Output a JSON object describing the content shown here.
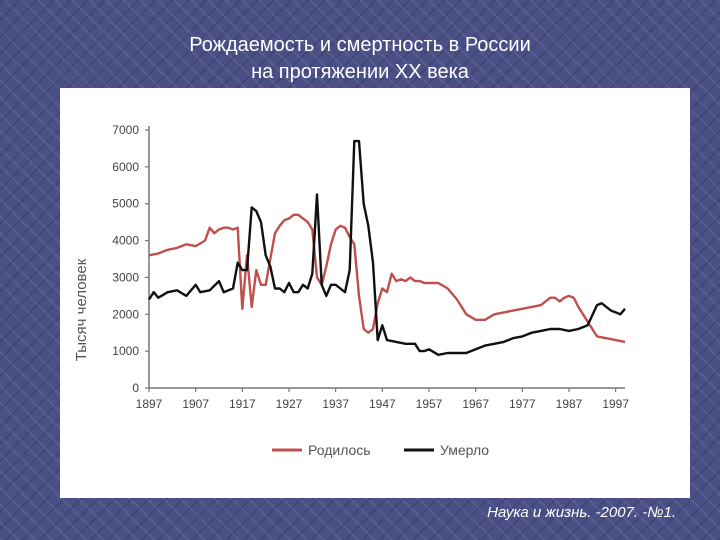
{
  "slide": {
    "title_line1": "Рождаемость и смертность в России",
    "title_line2": "на протяжении XX века",
    "source": "Наука и жизнь. -2007. -№1."
  },
  "colors": {
    "births": "#c0504d",
    "deaths": "#111111",
    "axis": "#777777"
  },
  "chart_data": {
    "type": "line",
    "title": "",
    "xlabel": "",
    "ylabel": "Тысяч человек",
    "xlim": [
      1897,
      1999
    ],
    "ylim": [
      0,
      7000
    ],
    "x_ticks": [
      1897,
      1907,
      1917,
      1927,
      1937,
      1947,
      1957,
      1967,
      1977,
      1987,
      1997
    ],
    "y_ticks": [
      0,
      1000,
      2000,
      3000,
      4000,
      5000,
      6000,
      7000
    ],
    "legend_position": "bottom",
    "series": [
      {
        "name": "Родилось",
        "color": "#c0504d",
        "points": [
          [
            1897,
            3600
          ],
          [
            1899,
            3650
          ],
          [
            1901,
            3750
          ],
          [
            1903,
            3800
          ],
          [
            1905,
            3900
          ],
          [
            1907,
            3850
          ],
          [
            1909,
            4000
          ],
          [
            1910,
            4350
          ],
          [
            1911,
            4200
          ],
          [
            1912,
            4300
          ],
          [
            1913,
            4350
          ],
          [
            1914,
            4350
          ],
          [
            1915,
            4300
          ],
          [
            1916,
            4350
          ],
          [
            1917,
            2150
          ],
          [
            1918,
            3600
          ],
          [
            1919,
            2200
          ],
          [
            1920,
            3200
          ],
          [
            1921,
            2800
          ],
          [
            1922,
            2800
          ],
          [
            1923,
            3500
          ],
          [
            1924,
            4200
          ],
          [
            1925,
            4400
          ],
          [
            1926,
            4550
          ],
          [
            1927,
            4600
          ],
          [
            1928,
            4700
          ],
          [
            1929,
            4700
          ],
          [
            1930,
            4600
          ],
          [
            1931,
            4500
          ],
          [
            1932,
            4300
          ],
          [
            1933,
            3000
          ],
          [
            1934,
            2800
          ],
          [
            1935,
            3300
          ],
          [
            1936,
            3900
          ],
          [
            1937,
            4300
          ],
          [
            1938,
            4400
          ],
          [
            1939,
            4350
          ],
          [
            1940,
            4100
          ],
          [
            1941,
            3900
          ],
          [
            1942,
            2500
          ],
          [
            1943,
            1600
          ],
          [
            1944,
            1500
          ],
          [
            1945,
            1600
          ],
          [
            1946,
            2300
          ],
          [
            1947,
            2700
          ],
          [
            1948,
            2600
          ],
          [
            1949,
            3100
          ],
          [
            1950,
            2900
          ],
          [
            1951,
            2950
          ],
          [
            1952,
            2900
          ],
          [
            1953,
            3000
          ],
          [
            1954,
            2900
          ],
          [
            1955,
            2900
          ],
          [
            1956,
            2850
          ],
          [
            1957,
            2850
          ],
          [
            1959,
            2850
          ],
          [
            1961,
            2700
          ],
          [
            1963,
            2400
          ],
          [
            1965,
            2000
          ],
          [
            1967,
            1850
          ],
          [
            1969,
            1850
          ],
          [
            1971,
            2000
          ],
          [
            1973,
            2050
          ],
          [
            1975,
            2100
          ],
          [
            1977,
            2150
          ],
          [
            1979,
            2200
          ],
          [
            1981,
            2250
          ],
          [
            1983,
            2450
          ],
          [
            1984,
            2450
          ],
          [
            1985,
            2350
          ],
          [
            1986,
            2450
          ],
          [
            1987,
            2500
          ],
          [
            1988,
            2450
          ],
          [
            1989,
            2200
          ],
          [
            1990,
            2000
          ],
          [
            1991,
            1800
          ],
          [
            1992,
            1600
          ],
          [
            1993,
            1400
          ],
          [
            1995,
            1350
          ],
          [
            1997,
            1300
          ],
          [
            1999,
            1250
          ]
        ]
      },
      {
        "name": "Умерло",
        "color": "#111111",
        "points": [
          [
            1897,
            2400
          ],
          [
            1898,
            2600
          ],
          [
            1899,
            2450
          ],
          [
            1901,
            2600
          ],
          [
            1903,
            2650
          ],
          [
            1905,
            2500
          ],
          [
            1907,
            2800
          ],
          [
            1908,
            2600
          ],
          [
            1910,
            2650
          ],
          [
            1912,
            2900
          ],
          [
            1913,
            2600
          ],
          [
            1915,
            2700
          ],
          [
            1916,
            3400
          ],
          [
            1917,
            3200
          ],
          [
            1918,
            3200
          ],
          [
            1919,
            4900
          ],
          [
            1920,
            4800
          ],
          [
            1921,
            4500
          ],
          [
            1922,
            3600
          ],
          [
            1923,
            3300
          ],
          [
            1924,
            2700
          ],
          [
            1925,
            2700
          ],
          [
            1926,
            2600
          ],
          [
            1927,
            2850
          ],
          [
            1928,
            2600
          ],
          [
            1929,
            2600
          ],
          [
            1930,
            2800
          ],
          [
            1931,
            2700
          ],
          [
            1932,
            3100
          ],
          [
            1933,
            5250
          ],
          [
            1934,
            2800
          ],
          [
            1935,
            2500
          ],
          [
            1936,
            2800
          ],
          [
            1937,
            2800
          ],
          [
            1938,
            2700
          ],
          [
            1939,
            2600
          ],
          [
            1940,
            3200
          ],
          [
            1941,
            6700
          ],
          [
            1942,
            6700
          ],
          [
            1943,
            5000
          ],
          [
            1944,
            4400
          ],
          [
            1945,
            3400
          ],
          [
            1946,
            1300
          ],
          [
            1947,
            1700
          ],
          [
            1948,
            1300
          ],
          [
            1950,
            1250
          ],
          [
            1952,
            1200
          ],
          [
            1954,
            1200
          ],
          [
            1955,
            1000
          ],
          [
            1956,
            1000
          ],
          [
            1957,
            1050
          ],
          [
            1959,
            900
          ],
          [
            1961,
            950
          ],
          [
            1963,
            950
          ],
          [
            1965,
            950
          ],
          [
            1967,
            1050
          ],
          [
            1969,
            1150
          ],
          [
            1971,
            1200
          ],
          [
            1973,
            1250
          ],
          [
            1975,
            1350
          ],
          [
            1977,
            1400
          ],
          [
            1979,
            1500
          ],
          [
            1981,
            1550
          ],
          [
            1983,
            1600
          ],
          [
            1985,
            1600
          ],
          [
            1987,
            1550
          ],
          [
            1989,
            1600
          ],
          [
            1991,
            1700
          ],
          [
            1993,
            2250
          ],
          [
            1994,
            2300
          ],
          [
            1995,
            2200
          ],
          [
            1996,
            2100
          ],
          [
            1997,
            2050
          ],
          [
            1998,
            2000
          ],
          [
            1999,
            2150
          ]
        ]
      }
    ]
  }
}
